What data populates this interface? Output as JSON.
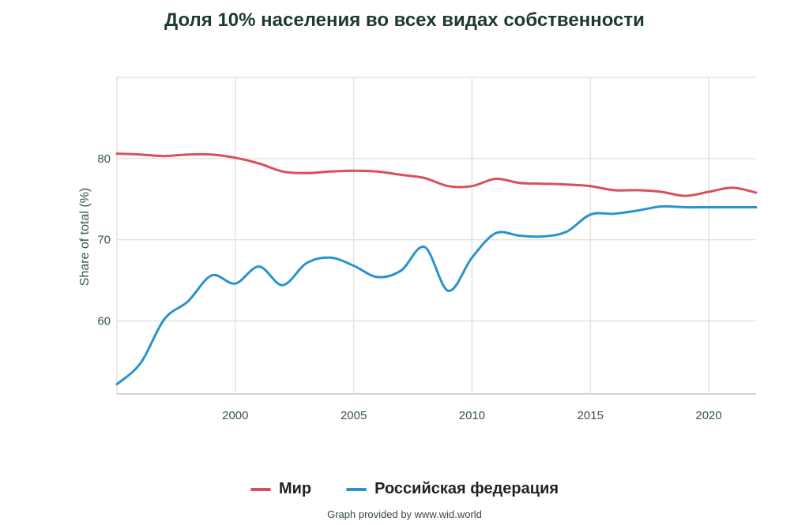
{
  "chart_data": {
    "type": "line",
    "title": "Доля 10% населения во всех видах собственности",
    "ylabel": "Share of total (%)",
    "xlabel": "",
    "xlim": [
      1995,
      2022
    ],
    "ylim": [
      51,
      90
    ],
    "x_ticks": [
      2000,
      2005,
      2010,
      2015,
      2020
    ],
    "y_ticks": [
      60,
      70,
      80
    ],
    "grid": true,
    "legend_position": "bottom",
    "series": [
      {
        "name": "Мир",
        "color": "#d9505a",
        "x": [
          1995,
          1996,
          1997,
          1998,
          1999,
          2000,
          2001,
          2002,
          2003,
          2004,
          2005,
          2006,
          2007,
          2008,
          2009,
          2010,
          2011,
          2012,
          2013,
          2014,
          2015,
          2016,
          2017,
          2018,
          2019,
          2020,
          2021,
          2022
        ],
        "values": [
          80.6,
          80.5,
          80.3,
          80.5,
          80.5,
          80.1,
          79.4,
          78.4,
          78.2,
          78.4,
          78.5,
          78.4,
          78.0,
          77.6,
          76.6,
          76.6,
          77.5,
          77.0,
          76.9,
          76.8,
          76.6,
          76.1,
          76.1,
          75.9,
          75.4,
          75.9,
          76.4,
          75.8
        ]
      },
      {
        "name": "Российская федерация",
        "color": "#2a93cc",
        "x": [
          1995,
          1996,
          1997,
          1998,
          1999,
          2000,
          2001,
          2002,
          2003,
          2004,
          2005,
          2006,
          2007,
          2008,
          2009,
          2010,
          2011,
          2012,
          2013,
          2014,
          2015,
          2016,
          2017,
          2018,
          2019,
          2020,
          2021,
          2022
        ],
        "values": [
          52.2,
          54.8,
          60.2,
          62.4,
          65.6,
          64.6,
          66.7,
          64.4,
          67.1,
          67.8,
          66.8,
          65.4,
          66.2,
          69.1,
          63.7,
          67.8,
          70.8,
          70.5,
          70.4,
          71.0,
          73.1,
          73.2,
          73.6,
          74.1,
          74.0,
          74.0,
          74.0,
          74.0
        ]
      }
    ]
  },
  "credit": "Graph provided by www.wid.world"
}
